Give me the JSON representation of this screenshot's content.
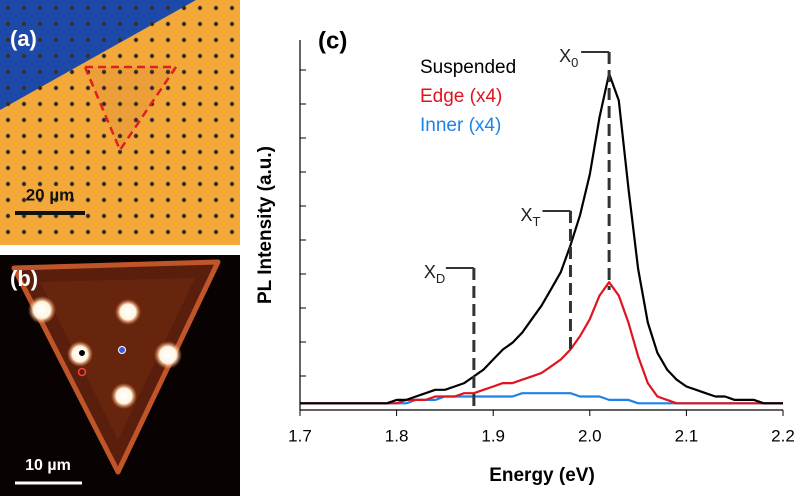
{
  "panels": {
    "a": {
      "label": "(a)",
      "scale_bar": "20 µm"
    },
    "b": {
      "label": "(b)",
      "scale_bar": "10 µm"
    }
  },
  "chart_data": {
    "type": "line",
    "panel_label": "(c)",
    "xlabel": "Energy (eV)",
    "ylabel": "PL Intensity (a.u.)",
    "xlim": [
      1.7,
      2.2
    ],
    "xticks": [
      1.7,
      1.8,
      1.9,
      {
        "value": 2,
        "label": "2.0"
      },
      2.1,
      2.2
    ],
    "ylim": [
      0,
      1.1
    ],
    "x": [
      1.7,
      1.71,
      1.72,
      1.73,
      1.74,
      1.75,
      1.76,
      1.77,
      1.78,
      1.79,
      1.8,
      1.81,
      1.82,
      1.83,
      1.84,
      1.85,
      1.86,
      1.87,
      1.88,
      1.89,
      1.9,
      1.91,
      1.92,
      1.93,
      1.94,
      1.95,
      1.96,
      1.97,
      1.98,
      1.99,
      2.0,
      2.01,
      2.02,
      2.03,
      2.04,
      2.05,
      2.06,
      2.07,
      2.08,
      2.09,
      2.1,
      2.11,
      2.12,
      2.13,
      2.14,
      2.15,
      2.16,
      2.17,
      2.18,
      2.19,
      2.2
    ],
    "series": [
      {
        "name": "Suspended",
        "color": "#000000",
        "values": [
          0.02,
          0.02,
          0.02,
          0.02,
          0.02,
          0.02,
          0.02,
          0.02,
          0.02,
          0.02,
          0.03,
          0.03,
          0.04,
          0.05,
          0.06,
          0.06,
          0.07,
          0.08,
          0.1,
          0.12,
          0.15,
          0.18,
          0.2,
          0.23,
          0.27,
          0.31,
          0.36,
          0.41,
          0.49,
          0.58,
          0.7,
          0.87,
          1.0,
          0.92,
          0.66,
          0.42,
          0.26,
          0.17,
          0.12,
          0.09,
          0.07,
          0.06,
          0.05,
          0.04,
          0.04,
          0.03,
          0.03,
          0.03,
          0.02,
          0.02,
          0.02
        ]
      },
      {
        "name": "Edge (x4)",
        "color": "#e0141e",
        "values": [
          0.02,
          0.02,
          0.02,
          0.02,
          0.02,
          0.02,
          0.02,
          0.02,
          0.02,
          0.02,
          0.02,
          0.03,
          0.03,
          0.03,
          0.04,
          0.04,
          0.04,
          0.05,
          0.05,
          0.06,
          0.07,
          0.08,
          0.08,
          0.09,
          0.1,
          0.11,
          0.13,
          0.15,
          0.18,
          0.22,
          0.27,
          0.34,
          0.38,
          0.34,
          0.26,
          0.16,
          0.08,
          0.04,
          0.03,
          0.02,
          0.02,
          0.02,
          0.02,
          0.02,
          0.02,
          0.02,
          0.02,
          0.02,
          0.02,
          0.02,
          0.02
        ]
      },
      {
        "name": "Inner (x4)",
        "color": "#1e82e6",
        "values": [
          0.02,
          0.02,
          0.02,
          0.02,
          0.02,
          0.02,
          0.02,
          0.02,
          0.02,
          0.02,
          0.02,
          0.02,
          0.03,
          0.03,
          0.03,
          0.04,
          0.04,
          0.04,
          0.04,
          0.04,
          0.04,
          0.04,
          0.04,
          0.05,
          0.05,
          0.05,
          0.05,
          0.05,
          0.05,
          0.04,
          0.04,
          0.04,
          0.03,
          0.03,
          0.03,
          0.02,
          0.02,
          0.02,
          0.02,
          0.02,
          0.02,
          0.02,
          0.02,
          0.02,
          0.02,
          0.02,
          0.02,
          0.02,
          0.02,
          0.02,
          0.02
        ]
      }
    ],
    "annotations": [
      {
        "label": "X",
        "sub": "D",
        "x": 1.88
      },
      {
        "label": "X",
        "sub": "T",
        "x": 1.98
      },
      {
        "label": "X",
        "sub": "0",
        "x": 2.02
      }
    ]
  }
}
